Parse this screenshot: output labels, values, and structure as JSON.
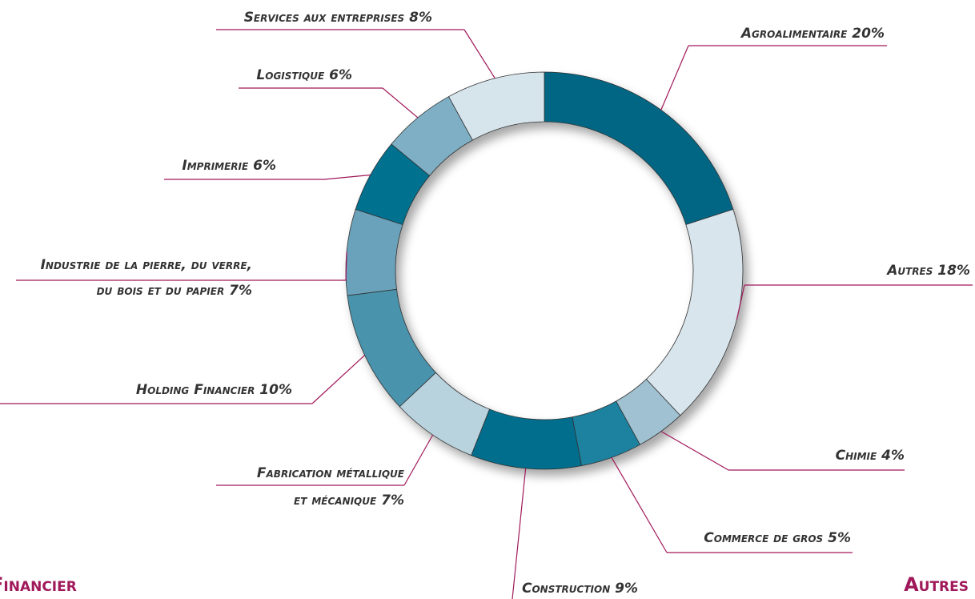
{
  "chart_data": {
    "type": "donut",
    "categories": [
      "Agroalimentaire",
      "Autres",
      "Chimie",
      "Commerce de gros",
      "Construction",
      [
        "Fabrication métallique",
        "et mécanique"
      ],
      "Holding Financier",
      [
        "Industrie de la pierre, du verre,",
        "du bois et du papier"
      ],
      "Imprimerie",
      "Logistique",
      "Services aux entreprises"
    ],
    "values": [
      20,
      18,
      4,
      5,
      9,
      7,
      10,
      7,
      6,
      6,
      8
    ],
    "value_labels": [
      "20%",
      "18%",
      "4%",
      "5%",
      "9%",
      "7%",
      "10%",
      "7%",
      "6%",
      "6%",
      "8%"
    ],
    "colors": [
      "#006684",
      "#d8e5ec",
      "#9fc1d1",
      "#1f82a0",
      "#006e8c",
      "#b8d2de",
      "#4a93ad",
      "#6aa2bb",
      "#00718f",
      "#7eafc4",
      "#d6e4ec"
    ],
    "annotations": [
      "Financier",
      "Autres"
    ]
  }
}
